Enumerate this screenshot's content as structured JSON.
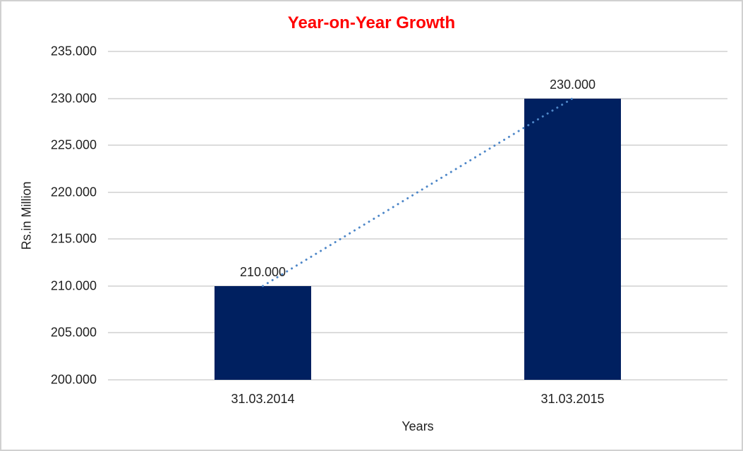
{
  "page": {
    "background": "#FFFFFF",
    "border_color": "#D0D0D0"
  },
  "chart_data": {
    "type": "bar",
    "title": "Year-on-Year Growth",
    "xlabel": "Years",
    "ylabel": "Rs.in Million",
    "categories": [
      "31.03.2014",
      "31.03.2015"
    ],
    "values": [
      210,
      230
    ],
    "value_labels": [
      "210.000",
      "230.000"
    ],
    "ylim": [
      200,
      235
    ],
    "ytick_values": [
      200,
      205,
      210,
      215,
      220,
      225,
      230,
      235
    ],
    "ytick_labels": [
      "200.000",
      "205.000",
      "210.000",
      "215.000",
      "220.000",
      "225.000",
      "230.000",
      "235.000"
    ],
    "grid": "horizontal",
    "legend": "none",
    "colors": {
      "title": "#FF0000",
      "bar": "#002060",
      "trendline": "#4E87C8",
      "gridline": "#DCDCDC",
      "text": "#1F1F1F"
    },
    "trendline": {
      "type": "linear",
      "style": "dotted",
      "connects": "bar tops",
      "from_value": 210,
      "to_value": 230
    }
  }
}
